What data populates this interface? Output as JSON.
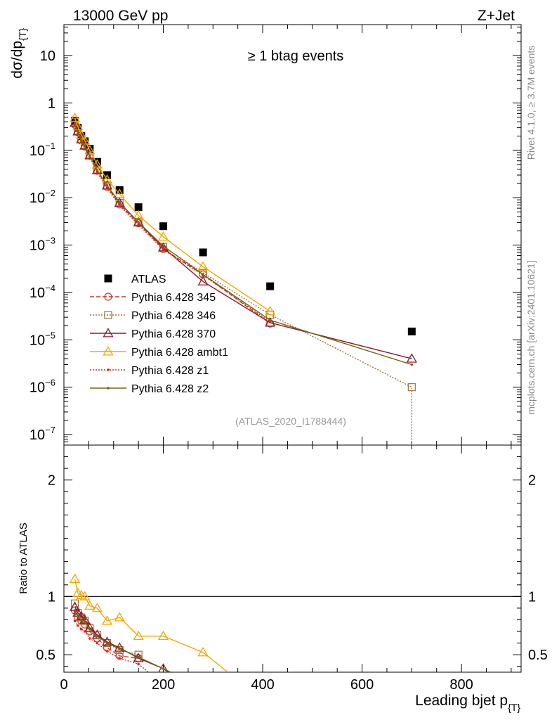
{
  "header": {
    "energy_label": "13000 GeV pp",
    "process_label": "Z+Jet",
    "selection_label": "≥ 1 btag events",
    "analysis_label": "(ATLAS_2020_I1788444)",
    "rivet_label": "Rivet 4.1.0, ≥ 3.7M events",
    "mcplots_label": "mcplots.cern.ch [arXiv:2401.10621]"
  },
  "chart_data": [
    {
      "type": "scatter",
      "panel": "main",
      "title": "≥ 1 btag events",
      "ylabel": "dσ/dp_{T}",
      "ylabel_main": "dσ/dp",
      "ylabel_sub": "{T}",
      "yscale": "log",
      "xlim": [
        0,
        920
      ],
      "ylim": [
        6e-08,
        45
      ],
      "grid": false,
      "legend_placement": "center-left",
      "x_tick_values": [
        0,
        200,
        400,
        600,
        800
      ],
      "y_tick_labels": [
        {
          "value": 10,
          "base": "10",
          "exp": ""
        },
        {
          "value": 1,
          "base": "1",
          "exp": ""
        },
        {
          "value": 0.1,
          "base": "10",
          "exp": "−1"
        },
        {
          "value": 0.01,
          "base": "10",
          "exp": "−2"
        },
        {
          "value": 0.001,
          "base": "10",
          "exp": "−3"
        },
        {
          "value": 0.0001,
          "base": "10",
          "exp": "−4"
        },
        {
          "value": 1e-05,
          "base": "10",
          "exp": "−5"
        },
        {
          "value": 1e-06,
          "base": "10",
          "exp": "−6"
        },
        {
          "value": 1e-07,
          "base": "10",
          "exp": "−7"
        }
      ],
      "series": [
        {
          "name": "ATLAS",
          "color": "#000000",
          "marker": "filled-square",
          "line": "none",
          "x": [
            22,
            28,
            35,
            42,
            52,
            67,
            87,
            112,
            150,
            200,
            280,
            415,
            700
          ],
          "y": [
            0.42,
            0.3,
            0.2,
            0.155,
            0.108,
            0.057,
            0.03,
            0.0145,
            0.0063,
            0.0025,
            0.0007,
            0.000135,
            1.5e-05
          ]
        },
        {
          "name": "Pythia 6.428 345",
          "color": "#c0392b",
          "marker": "open-circle",
          "line": "dashed",
          "x": [
            22,
            28,
            35,
            42,
            52,
            67,
            87,
            112,
            150,
            200,
            280,
            415
          ],
          "y": [
            0.35,
            0.24,
            0.16,
            0.12,
            0.077,
            0.037,
            0.017,
            0.0072,
            0.0029,
            0.00082,
            0.00024,
            2.2e-05
          ]
        },
        {
          "name": "Pythia 6.428 346",
          "color": "#a0703a",
          "marker": "open-square",
          "line": "dotted",
          "x": [
            22,
            28,
            35,
            42,
            52,
            67,
            87,
            112,
            150,
            200,
            280,
            415,
            700,
            700
          ],
          "y": [
            0.4,
            0.26,
            0.17,
            0.13,
            0.08,
            0.039,
            0.018,
            0.0078,
            0.0031,
            0.00092,
            0.00026,
            3.4e-05,
            1e-06,
            6e-08
          ]
        },
        {
          "name": "Pythia 6.428 370",
          "color": "#8b1a2b",
          "marker": "open-triangle",
          "line": "solid",
          "x": [
            22,
            28,
            35,
            42,
            52,
            67,
            87,
            112,
            150,
            200,
            280,
            415,
            700
          ],
          "y": [
            0.38,
            0.25,
            0.17,
            0.125,
            0.078,
            0.038,
            0.018,
            0.0078,
            0.003,
            0.00088,
            0.00017,
            2.3e-05,
            4e-06
          ]
        },
        {
          "name": "Pythia 6.428 ambt1",
          "color": "#f0a800",
          "marker": "open-triangle",
          "line": "solid",
          "x": [
            22,
            28,
            35,
            42,
            52,
            67,
            87,
            112,
            150,
            200,
            280,
            415
          ],
          "y": [
            0.48,
            0.32,
            0.21,
            0.16,
            0.1,
            0.05,
            0.024,
            0.012,
            0.0042,
            0.0015,
            0.00035,
            4e-05
          ]
        },
        {
          "name": "Pythia 6.428 z1",
          "color": "#e02020",
          "marker": "dot",
          "line": "dotted",
          "x": [
            22,
            28,
            35,
            42,
            52,
            67,
            87,
            112,
            150,
            200,
            280,
            415
          ],
          "y": [
            0.34,
            0.22,
            0.15,
            0.11,
            0.072,
            0.034,
            0.016,
            0.0068,
            0.0027,
            0.0008,
            0.00023,
            2.4e-05
          ]
        },
        {
          "name": "Pythia 6.428 z2",
          "color": "#6b6b10",
          "marker": "dot",
          "line": "solid",
          "x": [
            22,
            28,
            35,
            42,
            52,
            67,
            87,
            112,
            150,
            200,
            280,
            415,
            700
          ],
          "y": [
            0.37,
            0.25,
            0.165,
            0.125,
            0.078,
            0.038,
            0.018,
            0.008,
            0.003,
            0.00095,
            0.00024,
            2.6e-05,
            3e-06
          ]
        }
      ]
    },
    {
      "type": "line",
      "panel": "ratio",
      "xlabel": "Leading bjet p_{T}",
      "xlabel_main": "Leading bjet p",
      "xlabel_sub": "{T}",
      "ylabel": "Ratio to ATLAS",
      "xlim": [
        0,
        920
      ],
      "ylim": [
        0.35,
        2.3
      ],
      "reference_line": 1,
      "x_tick_values": [
        0,
        200,
        400,
        600,
        800
      ],
      "y_tick_values": [
        0.5,
        1,
        2
      ],
      "series": [
        {
          "name": "Pythia 6.428 345",
          "color": "#c0392b",
          "line": "dashed",
          "marker": "open-circle",
          "x": [
            22,
            28,
            35,
            42,
            52,
            67,
            87,
            112,
            150
          ],
          "y": [
            0.88,
            0.82,
            0.79,
            0.76,
            0.7,
            0.64,
            0.56,
            0.49,
            0.47
          ]
        },
        {
          "name": "Pythia 6.428 346",
          "color": "#a0703a",
          "line": "dotted",
          "marker": "open-square",
          "x": [
            22,
            28,
            35,
            42,
            52,
            67,
            87,
            112,
            150
          ],
          "y": [
            0.94,
            0.86,
            0.82,
            0.79,
            0.73,
            0.67,
            0.6,
            0.54,
            0.5
          ]
        },
        {
          "name": "Pythia 6.428 370",
          "color": "#8b1a2b",
          "line": "solid",
          "marker": "open-triangle",
          "x": [
            22,
            28,
            35,
            42,
            52,
            67,
            87,
            112,
            150,
            200,
            210
          ],
          "y": [
            0.91,
            0.86,
            0.83,
            0.8,
            0.73,
            0.67,
            0.61,
            0.56,
            0.47,
            0.38,
            0.35
          ]
        },
        {
          "name": "Pythia 6.428 ambt1",
          "color": "#f0a800",
          "line": "solid",
          "marker": "open-triangle",
          "x": [
            22,
            28,
            35,
            42,
            52,
            67,
            87,
            112,
            150,
            200,
            280,
            330
          ],
          "y": [
            1.15,
            1.03,
            1.01,
            1.0,
            0.92,
            0.9,
            0.79,
            0.82,
            0.66,
            0.66,
            0.52,
            0.35
          ]
        },
        {
          "name": "Pythia 6.428 z1",
          "color": "#e02020",
          "line": "dotted",
          "marker": "dot",
          "x": [
            22,
            28,
            35,
            42,
            52,
            67,
            87,
            112,
            150,
            170
          ],
          "y": [
            0.79,
            0.75,
            0.72,
            0.7,
            0.64,
            0.6,
            0.53,
            0.47,
            0.42,
            0.35
          ]
        },
        {
          "name": "Pythia 6.428 z2",
          "color": "#6b6b10",
          "line": "solid",
          "marker": "dot",
          "x": [
            22,
            28,
            35,
            42,
            52,
            67,
            87,
            112,
            150,
            200,
            215
          ],
          "y": [
            0.87,
            0.83,
            0.8,
            0.79,
            0.72,
            0.66,
            0.6,
            0.55,
            0.48,
            0.38,
            0.35
          ]
        }
      ]
    }
  ]
}
